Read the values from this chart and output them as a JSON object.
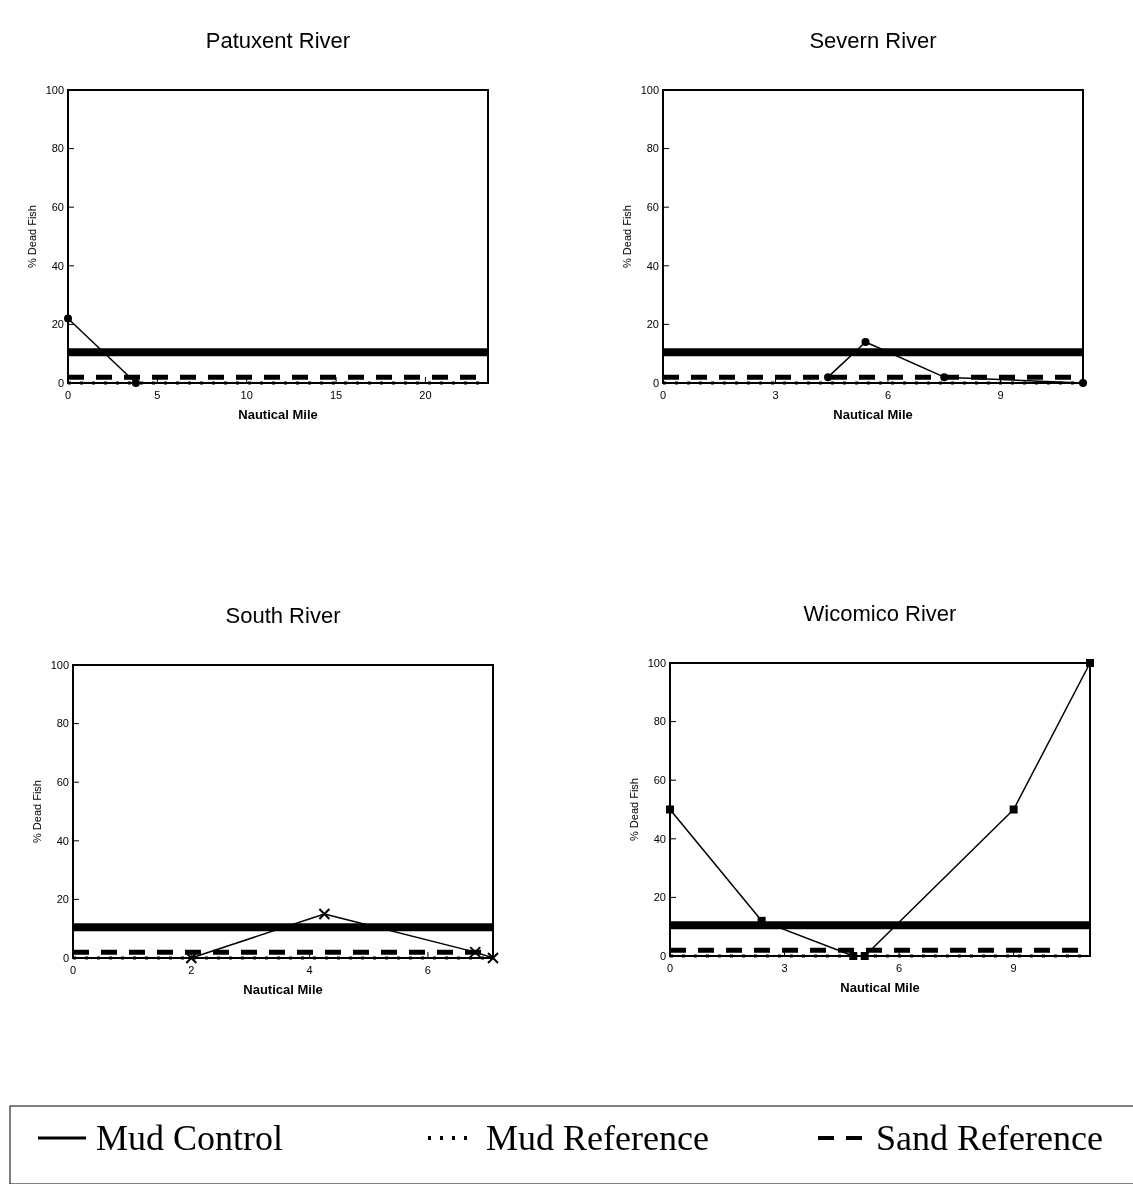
{
  "chart_data": [
    {
      "type": "line",
      "title": "Patuxent River",
      "xlabel": "Nautical Mile",
      "ylabel": "% Dead Fish",
      "xlim": [
        0,
        23.5
      ],
      "xticks": [
        0,
        5,
        10,
        15,
        20
      ],
      "ylim": [
        0,
        100
      ],
      "yticks": [
        0,
        20,
        40,
        60,
        80,
        100
      ],
      "grid": false,
      "legend": false,
      "series": [
        {
          "x": [
            0,
            3.8
          ],
          "values": [
            22,
            0
          ],
          "color": "#000000",
          "marker": "circle",
          "line_style": "solid"
        },
        {
          "x": [
            0,
            23.5
          ],
          "values": [
            10.5,
            10.5
          ],
          "color": "#000000",
          "marker": "none",
          "line_style": "solid"
        },
        {
          "x": [
            0,
            23.5
          ],
          "values": [
            0,
            0
          ],
          "color": "#000000",
          "marker": "none",
          "line_style": "dotted"
        },
        {
          "x": [
            0,
            23.5
          ],
          "values": [
            2,
            2
          ],
          "color": "#000000",
          "marker": "none",
          "line_style": "dashed"
        }
      ]
    },
    {
      "type": "line",
      "title": "Severn River",
      "xlabel": "Nautical Mile",
      "ylabel": "% Dead Fish",
      "xlim": [
        0,
        11.2
      ],
      "xticks": [
        0,
        3,
        6,
        9
      ],
      "ylim": [
        0,
        100
      ],
      "yticks": [
        0,
        20,
        40,
        60,
        80,
        100
      ],
      "grid": false,
      "legend": false,
      "series": [
        {
          "x": [
            4.4,
            5.4,
            7.5,
            11.2
          ],
          "values": [
            2,
            14,
            2,
            0
          ],
          "color": "#000000",
          "marker": "circle",
          "line_style": "solid"
        },
        {
          "x": [
            0,
            11.2
          ],
          "values": [
            10.5,
            10.5
          ],
          "color": "#000000",
          "marker": "none",
          "line_style": "solid"
        },
        {
          "x": [
            0,
            11.2
          ],
          "values": [
            0,
            0
          ],
          "color": "#000000",
          "marker": "none",
          "line_style": "dotted"
        },
        {
          "x": [
            0,
            11.2
          ],
          "values": [
            2,
            2
          ],
          "color": "#000000",
          "marker": "none",
          "line_style": "dashed"
        }
      ]
    },
    {
      "type": "line",
      "title": "South River",
      "xlabel": "Nautical Mile",
      "ylabel": "% Dead Fish",
      "xlim": [
        0,
        7.1
      ],
      "xticks": [
        0,
        2,
        4,
        6
      ],
      "ylim": [
        0,
        100
      ],
      "yticks": [
        0,
        20,
        40,
        60,
        80,
        100
      ],
      "grid": false,
      "legend": false,
      "series": [
        {
          "x": [
            2,
            4.25,
            6.8,
            7.1
          ],
          "values": [
            0,
            15,
            2,
            0
          ],
          "color": "#000000",
          "marker": "cross",
          "line_style": "solid"
        },
        {
          "x": [
            0,
            7.1
          ],
          "values": [
            10.5,
            10.5
          ],
          "color": "#000000",
          "marker": "none",
          "line_style": "solid"
        },
        {
          "x": [
            0,
            7.1
          ],
          "values": [
            0,
            0
          ],
          "color": "#000000",
          "marker": "none",
          "line_style": "dotted"
        },
        {
          "x": [
            0,
            7.1
          ],
          "values": [
            2,
            2
          ],
          "color": "#000000",
          "marker": "none",
          "line_style": "dashed"
        }
      ]
    },
    {
      "type": "line",
      "title": "Wicomico River",
      "xlabel": "Nautical Mile",
      "ylabel": "% Dead Fish",
      "xlim": [
        0,
        11
      ],
      "xticks": [
        0,
        3,
        6,
        9
      ],
      "ylim": [
        0,
        100
      ],
      "yticks": [
        0,
        20,
        40,
        60,
        80,
        100
      ],
      "grid": false,
      "legend": "bottom",
      "series": [
        {
          "x": [
            0,
            2.4,
            4.8,
            5.1,
            9,
            11
          ],
          "values": [
            50,
            12,
            0,
            0,
            50,
            100
          ],
          "color": "#000000",
          "marker": "square",
          "line_style": "solid"
        },
        {
          "name": "Mud Control",
          "x": [
            0,
            11
          ],
          "values": [
            10.5,
            10.5
          ],
          "color": "#000000",
          "marker": "none",
          "line_style": "solid"
        },
        {
          "name": "Mud Reference",
          "x": [
            0,
            11
          ],
          "values": [
            0,
            0
          ],
          "color": "#000000",
          "marker": "none",
          "line_style": "dotted"
        },
        {
          "name": "Sand Reference",
          "x": [
            0,
            11
          ],
          "values": [
            2,
            2
          ],
          "color": "#000000",
          "marker": "none",
          "line_style": "dashed"
        }
      ]
    }
  ]
}
